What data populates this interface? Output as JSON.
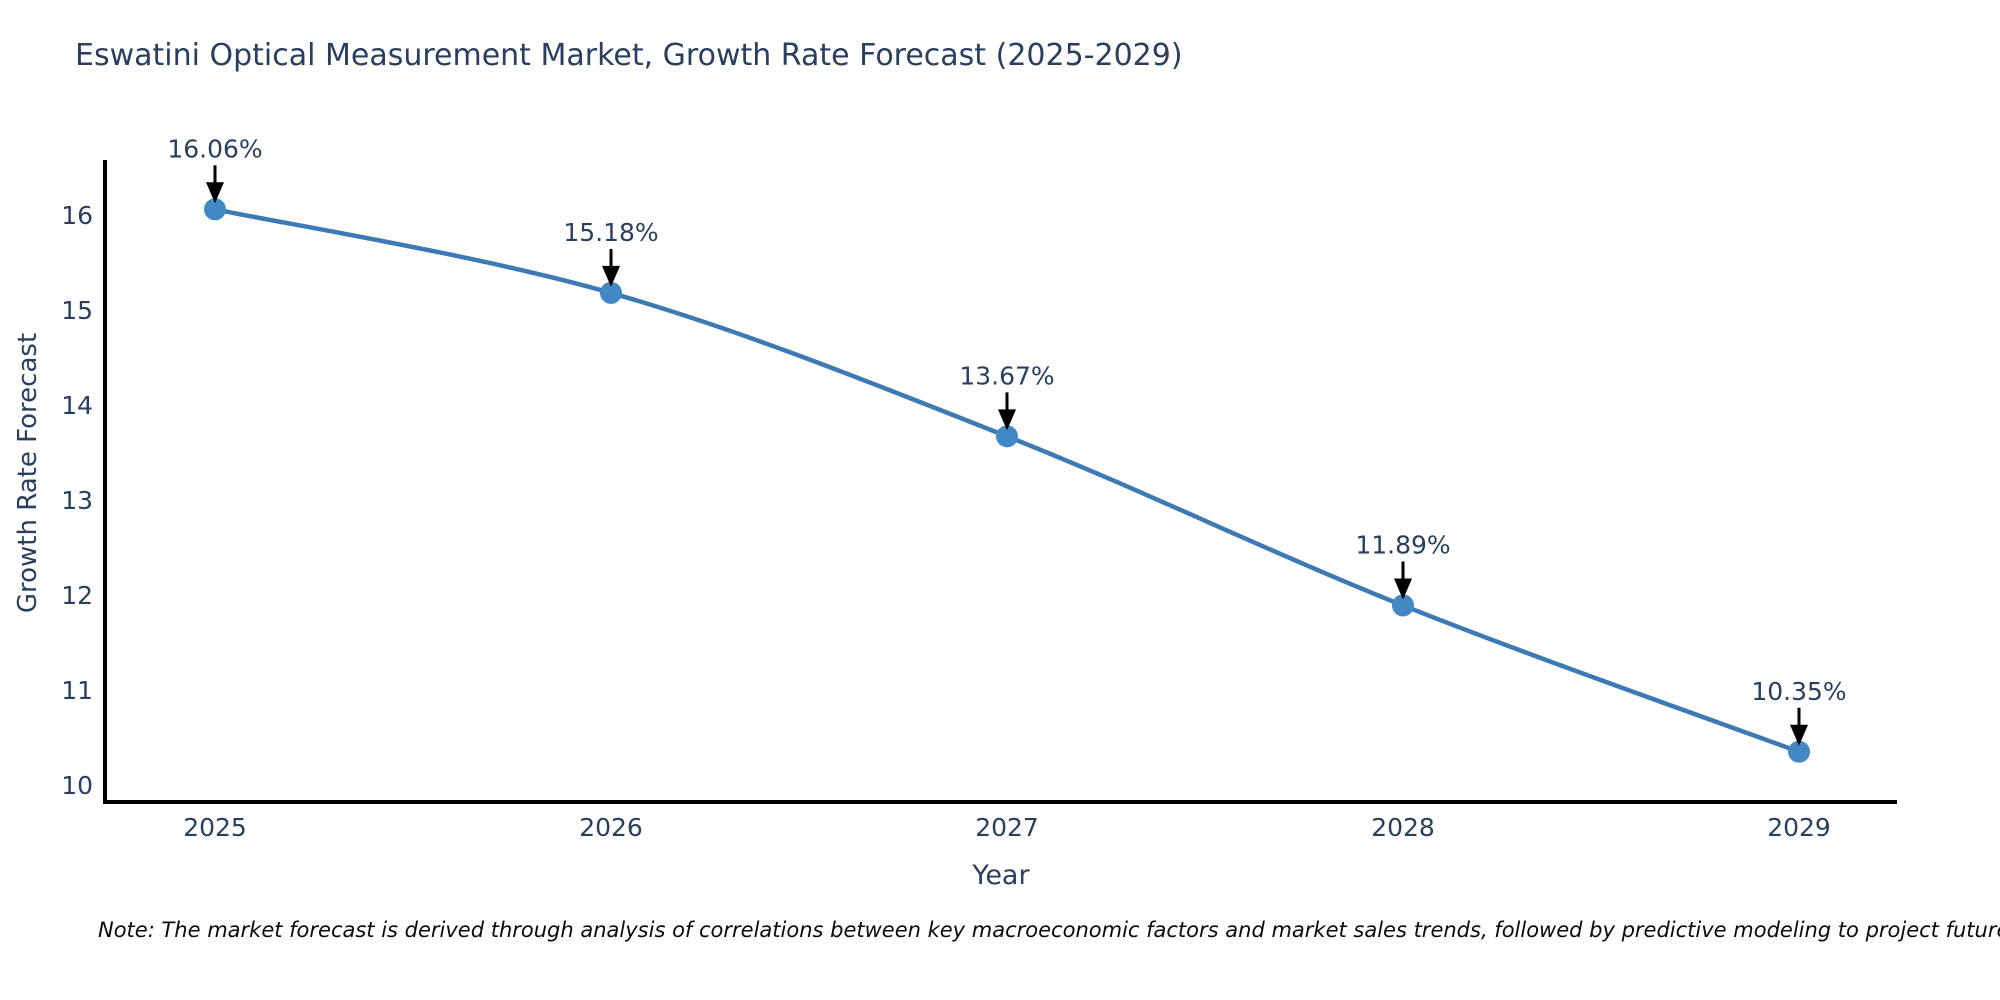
{
  "chart": {
    "title": "Eswatini Optical Measurement Market, Growth Rate Forecast (2025-2029)",
    "xlabel": "Year",
    "ylabel": "Growth Rate Forecast",
    "note": "Note: The market forecast is derived through analysis of correlations between key macroeconomic factors and market sales trends, followed by predictive modeling to project future sales",
    "colors": {
      "line": "#3d79b4",
      "marker": "#4288c5",
      "axis": "#000000",
      "text": "#2a3f5f",
      "arrow": "#000000",
      "background": "#ffffff"
    }
  },
  "chart_data": {
    "type": "line",
    "x": [
      "2025",
      "2026",
      "2027",
      "2028",
      "2029"
    ],
    "values": [
      16.06,
      15.18,
      13.67,
      11.89,
      10.35
    ],
    "point_labels": [
      "16.06%",
      "15.18%",
      "13.67%",
      "11.89%",
      "10.35%"
    ],
    "yticks": [
      10,
      11,
      12,
      13,
      14,
      15,
      16
    ],
    "title": "Eswatini Optical Measurement Market, Growth Rate Forecast (2025-2029)",
    "xlabel": "Year",
    "ylabel": "Growth Rate Forecast",
    "ylim": [
      9.8,
      16.6
    ],
    "grid": false,
    "legend": false,
    "line_style": "spline",
    "annotations": "arrow-down-to-point"
  }
}
